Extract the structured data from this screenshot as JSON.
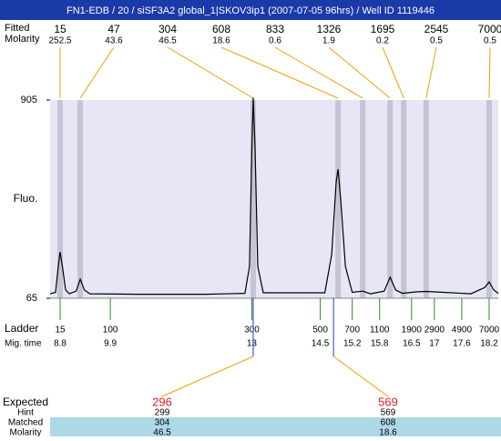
{
  "header": {
    "title": "FN1-EDB / 20 / siSF3A2 global_1|SKOV3ip1 (2007-07-05 96hrs) / Well ID 1119446"
  },
  "chart_data": {
    "type": "electropherogram",
    "ylabel": "Fluo.",
    "ylim": [
      65,
      905
    ],
    "yticks": [
      65,
      905
    ],
    "xlim": [
      8.58,
      18.4
    ],
    "peak_row_labels": [
      "Fitted",
      "Molarity"
    ],
    "peaks": {
      "size": [
        15,
        47,
        304,
        608,
        833,
        1326,
        1695,
        2545,
        7000
      ],
      "molarity": [
        252.5,
        43.6,
        46.5,
        18.6,
        0.6,
        1.9,
        0.2,
        0.5,
        0.5
      ],
      "time": [
        8.8,
        9.24,
        13.03,
        14.89,
        15.43,
        16.03,
        16.33,
        16.82,
        18.2
      ]
    },
    "ladder": {
      "labels": [
        "Ladder",
        "Mig. time"
      ],
      "size": [
        15,
        100,
        300,
        500,
        700,
        1100,
        1900,
        2900,
        4900,
        7000
      ],
      "time": [
        8.8,
        9.9,
        13,
        14.5,
        15.2,
        15.8,
        16.5,
        17,
        17.6,
        18.2
      ]
    },
    "trace": {
      "x": [
        8.58,
        8.7,
        8.76,
        8.8,
        8.85,
        8.92,
        9.0,
        9.15,
        9.24,
        9.33,
        9.45,
        10.5,
        12.0,
        12.85,
        12.95,
        13.0,
        13.03,
        13.07,
        13.13,
        13.25,
        14.6,
        14.75,
        14.85,
        14.89,
        14.95,
        15.05,
        15.2,
        15.43,
        15.6,
        15.9,
        16.03,
        16.15,
        16.3,
        16.6,
        16.82,
        17.2,
        17.8,
        18.1,
        18.2,
        18.3,
        18.4
      ],
      "y": [
        84,
        90,
        200,
        261,
        200,
        100,
        84,
        95,
        146,
        100,
        84,
        82,
        82,
        86,
        200,
        700,
        915,
        700,
        200,
        88,
        88,
        250,
        560,
        612,
        480,
        200,
        90,
        95,
        84,
        95,
        154,
        100,
        86,
        92,
        94,
        90,
        84,
        110,
        134,
        100,
        86
      ]
    },
    "expected": {
      "labels": [
        "Expected",
        "Hint",
        "Matched",
        "Molarity"
      ],
      "columns": [
        {
          "time": 13.03,
          "expected": 296,
          "hint": 299,
          "matched": 304,
          "molarity": 46.5
        },
        {
          "time": 14.79,
          "expected": 569,
          "hint": 569,
          "matched": 608,
          "molarity": 18.6
        }
      ]
    }
  }
}
